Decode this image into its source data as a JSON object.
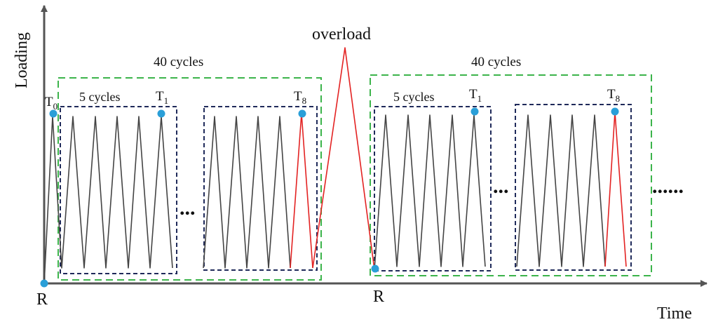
{
  "axes": {
    "y_label": "Loading",
    "x_label": "Time"
  },
  "labels": {
    "overload": "overload",
    "origin_left": "R",
    "origin_right": "R",
    "block_left_cycles": "40 cycles",
    "block_right_cycles": "40 cycles",
    "sub_left_cycles": "5 cycles",
    "sub_right_cycles": "5 cycles",
    "t0_main": "T",
    "t0_sub": "0",
    "t1_left_main": "T",
    "t1_left_sub": "1",
    "t8_left_main": "T",
    "t8_left_sub": "8",
    "t1_right_main": "T",
    "t1_right_sub": "1",
    "t8_right_main": "T",
    "t8_right_sub": "8",
    "ellipsis_left": "...",
    "ellipsis_right": "...",
    "ellipsis_end": "......"
  },
  "colors": {
    "axis": "#555555",
    "load_line": "#444444",
    "highlight_line": "#e32222",
    "outer_box": "#3cb44b",
    "inner_box": "#1f2a5a",
    "marker": "#2a9fd8"
  }
}
